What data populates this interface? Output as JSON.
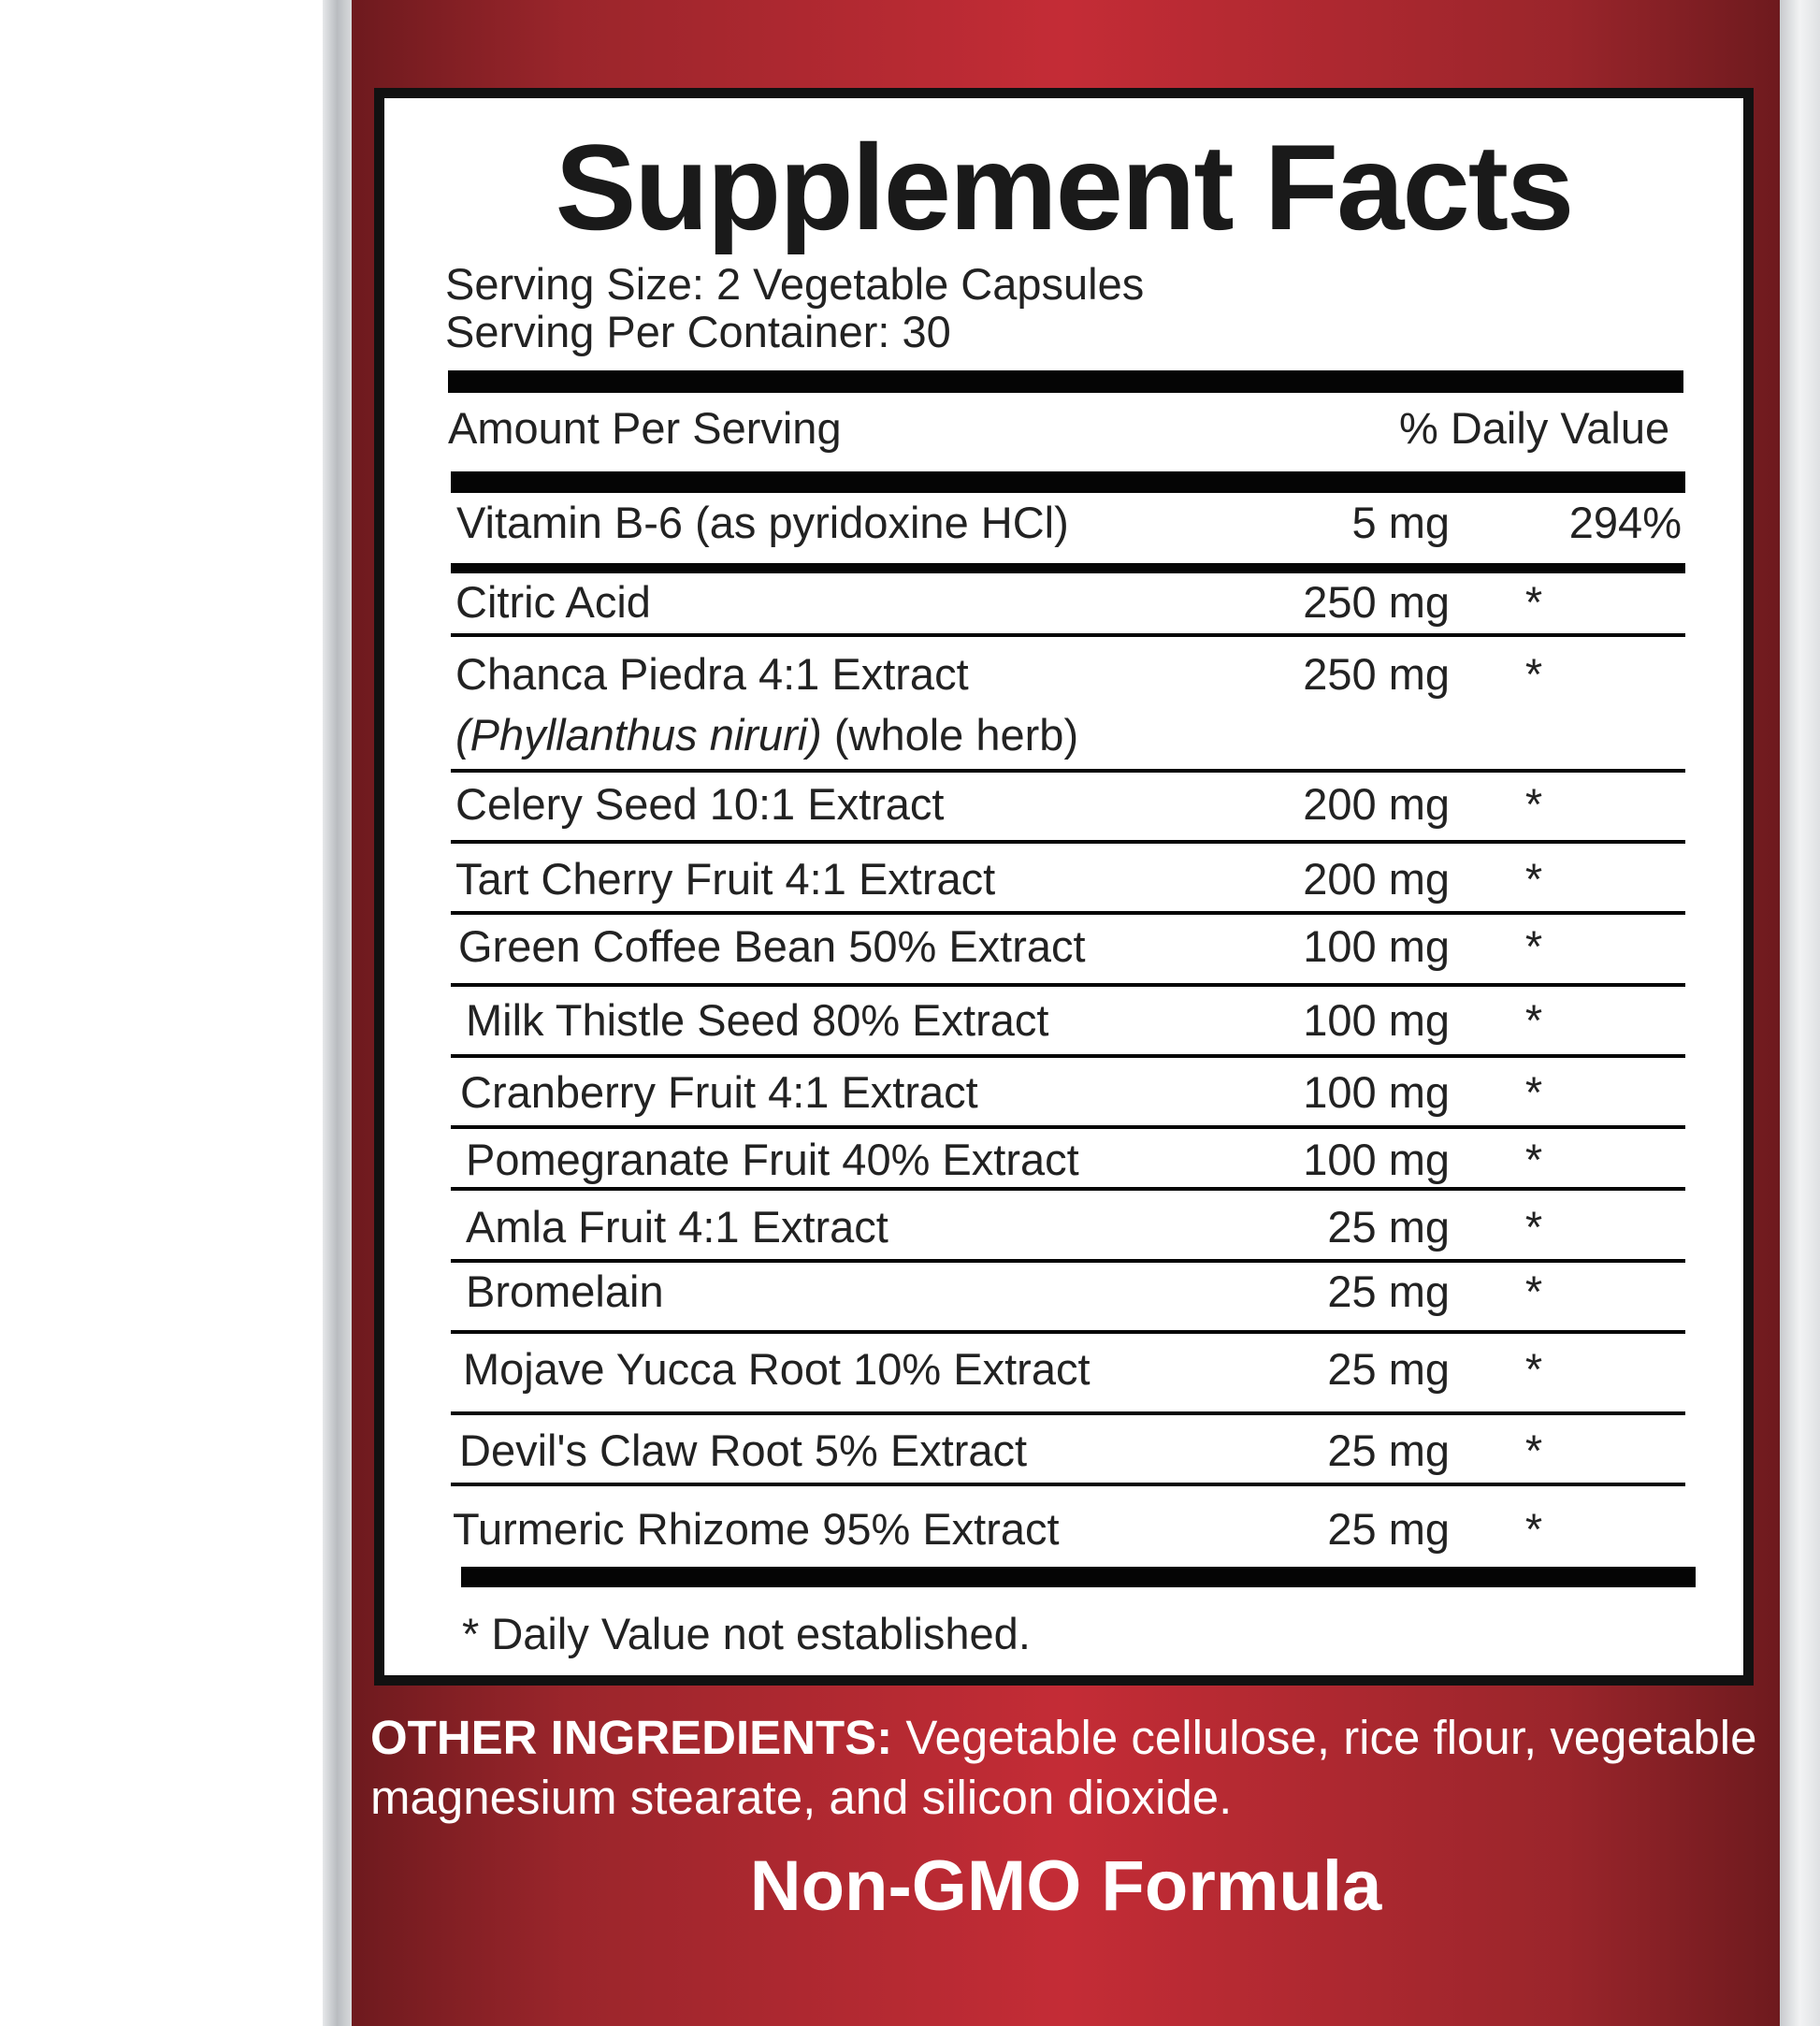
{
  "title": "Supplement Facts",
  "serving_size": "Serving Size: 2 Vegetable Capsules",
  "servings_per_container": "Serving Per Container: 30",
  "header": {
    "amount_label": "Amount Per Serving",
    "dv_label": "% Daily Value"
  },
  "ingredients": [
    {
      "name": "Vitamin B-6 (as pyridoxine HCl)",
      "amount": "5 mg",
      "dv": "294%"
    },
    {
      "name": "Citric Acid",
      "amount": "250 mg",
      "dv": "*"
    },
    {
      "name": "Chanca Piedra 4:1 Extract",
      "name_latin": "(Phyllanthus niruri)",
      "name_note": " (whole herb)",
      "amount": "250 mg",
      "dv": "*"
    },
    {
      "name": "Celery Seed 10:1 Extract",
      "amount": "200 mg",
      "dv": "*"
    },
    {
      "name": "Tart Cherry Fruit 4:1 Extract",
      "amount": "200 mg",
      "dv": "*"
    },
    {
      "name": "Green Coffee Bean 50% Extract",
      "amount": "100 mg",
      "dv": "*"
    },
    {
      "name": "Milk Thistle Seed 80% Extract",
      "amount": "100 mg",
      "dv": "*"
    },
    {
      "name": "Cranberry Fruit 4:1 Extract",
      "amount": "100 mg",
      "dv": "*"
    },
    {
      "name": "Pomegranate Fruit 40% Extract",
      "amount": "100 mg",
      "dv": "*"
    },
    {
      "name": "Amla Fruit 4:1 Extract",
      "amount": "25 mg",
      "dv": "*"
    },
    {
      "name": "Bromelain",
      "amount": "25 mg",
      "dv": "*"
    },
    {
      "name": "Mojave Yucca Root 10% Extract",
      "amount": "25 mg",
      "dv": "*"
    },
    {
      "name": "Devil's Claw Root 5% Extract",
      "amount": "25 mg",
      "dv": "*"
    },
    {
      "name": "Turmeric Rhizome 95% Extract",
      "amount": "25 mg",
      "dv": "*"
    }
  ],
  "footnote": "* Daily Value not established.",
  "other_ingredients": {
    "label": "OTHER INGREDIENTS:",
    "text": " Vegetable cellulose, rice flour, vegetable magnesium stearate, and silicon dioxide."
  },
  "badge": "Non-GMO Formula",
  "colors": {
    "label_red": "#c42c36",
    "label_red_dark": "#6e1a1e",
    "panel": "#ffffff",
    "rule": "#050505"
  }
}
